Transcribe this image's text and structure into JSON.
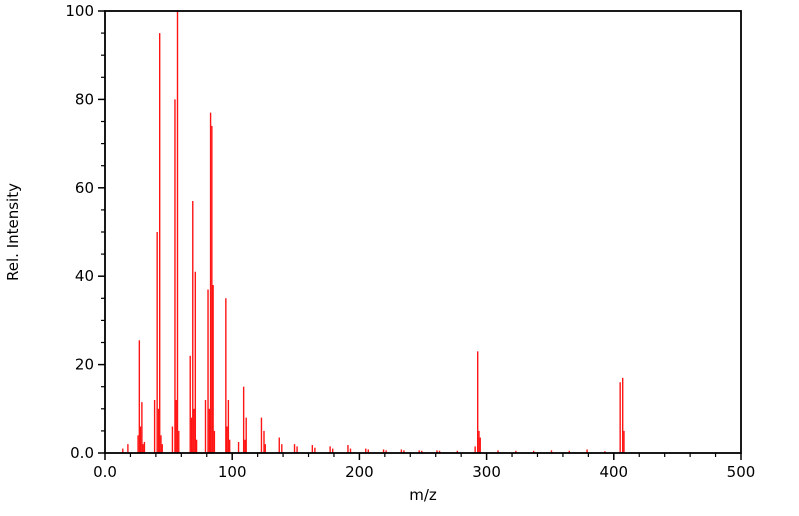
{
  "figure": {
    "background": "#ffffff",
    "frame_color": "#000000"
  },
  "chart_data": {
    "type": "bar",
    "subtype": "mass-spectrum-stem-plot",
    "title": "",
    "xlabel": "m/z",
    "ylabel": "Rel. Intensity",
    "xlim": [
      0,
      500
    ],
    "ylim": [
      0,
      100
    ],
    "x_major_ticks": [
      0,
      100,
      200,
      300,
      400,
      500
    ],
    "x_tick_labels": [
      "0.0",
      "100",
      "200",
      "300",
      "400",
      "500"
    ],
    "y_major_ticks": [
      0,
      20,
      40,
      60,
      80,
      100
    ],
    "y_tick_labels": [
      "0.0",
      "20",
      "40",
      "60",
      "80",
      "100"
    ],
    "x_minor_step": 20,
    "y_minor_step": 5,
    "grid": false,
    "legend": null,
    "bar_color": "#ff1414",
    "peaks": [
      {
        "mz": 14,
        "intensity": 1.0
      },
      {
        "mz": 18,
        "intensity": 2.0
      },
      {
        "mz": 26,
        "intensity": 4.0
      },
      {
        "mz": 27,
        "intensity": 25.5
      },
      {
        "mz": 28,
        "intensity": 6.0
      },
      {
        "mz": 29,
        "intensity": 11.5
      },
      {
        "mz": 30,
        "intensity": 2.0
      },
      {
        "mz": 31,
        "intensity": 2.5
      },
      {
        "mz": 39,
        "intensity": 12.0
      },
      {
        "mz": 41,
        "intensity": 50.0
      },
      {
        "mz": 42,
        "intensity": 10.0
      },
      {
        "mz": 43,
        "intensity": 95.0
      },
      {
        "mz": 44,
        "intensity": 4.0
      },
      {
        "mz": 45,
        "intensity": 2.0
      },
      {
        "mz": 53,
        "intensity": 6.0
      },
      {
        "mz": 55,
        "intensity": 80.0
      },
      {
        "mz": 56,
        "intensity": 12.0
      },
      {
        "mz": 57,
        "intensity": 100.0
      },
      {
        "mz": 58,
        "intensity": 5.0
      },
      {
        "mz": 67,
        "intensity": 22.0
      },
      {
        "mz": 68,
        "intensity": 8.0
      },
      {
        "mz": 69,
        "intensity": 57.0
      },
      {
        "mz": 70,
        "intensity": 10.0
      },
      {
        "mz": 71,
        "intensity": 41.0
      },
      {
        "mz": 72,
        "intensity": 3.0
      },
      {
        "mz": 79,
        "intensity": 12.0
      },
      {
        "mz": 81,
        "intensity": 37.0
      },
      {
        "mz": 82,
        "intensity": 10.0
      },
      {
        "mz": 83,
        "intensity": 77.0
      },
      {
        "mz": 84,
        "intensity": 74.0
      },
      {
        "mz": 85,
        "intensity": 38.0
      },
      {
        "mz": 86,
        "intensity": 5.0
      },
      {
        "mz": 95,
        "intensity": 35.0
      },
      {
        "mz": 96,
        "intensity": 6.0
      },
      {
        "mz": 97,
        "intensity": 12.0
      },
      {
        "mz": 98,
        "intensity": 3.0
      },
      {
        "mz": 105,
        "intensity": 2.5
      },
      {
        "mz": 109,
        "intensity": 15.0
      },
      {
        "mz": 110,
        "intensity": 3.0
      },
      {
        "mz": 111,
        "intensity": 8.0
      },
      {
        "mz": 123,
        "intensity": 8.0
      },
      {
        "mz": 125,
        "intensity": 5.0
      },
      {
        "mz": 126,
        "intensity": 2.0
      },
      {
        "mz": 137,
        "intensity": 3.5
      },
      {
        "mz": 139,
        "intensity": 2.0
      },
      {
        "mz": 149,
        "intensity": 2.0
      },
      {
        "mz": 151,
        "intensity": 1.5
      },
      {
        "mz": 163,
        "intensity": 1.8
      },
      {
        "mz": 165,
        "intensity": 1.2
      },
      {
        "mz": 177,
        "intensity": 1.5
      },
      {
        "mz": 179,
        "intensity": 1.0
      },
      {
        "mz": 191,
        "intensity": 1.8
      },
      {
        "mz": 193,
        "intensity": 1.0
      },
      {
        "mz": 205,
        "intensity": 1.0
      },
      {
        "mz": 207,
        "intensity": 0.8
      },
      {
        "mz": 219,
        "intensity": 0.8
      },
      {
        "mz": 221,
        "intensity": 0.6
      },
      {
        "mz": 233,
        "intensity": 0.8
      },
      {
        "mz": 235,
        "intensity": 0.6
      },
      {
        "mz": 247,
        "intensity": 0.6
      },
      {
        "mz": 249,
        "intensity": 0.5
      },
      {
        "mz": 261,
        "intensity": 0.6
      },
      {
        "mz": 263,
        "intensity": 0.5
      },
      {
        "mz": 277,
        "intensity": 0.5
      },
      {
        "mz": 291,
        "intensity": 1.5
      },
      {
        "mz": 293,
        "intensity": 23.0
      },
      {
        "mz": 294,
        "intensity": 5.0
      },
      {
        "mz": 295,
        "intensity": 3.5
      },
      {
        "mz": 309,
        "intensity": 0.6
      },
      {
        "mz": 323,
        "intensity": 0.5
      },
      {
        "mz": 337,
        "intensity": 0.5
      },
      {
        "mz": 351,
        "intensity": 0.6
      },
      {
        "mz": 365,
        "intensity": 0.5
      },
      {
        "mz": 379,
        "intensity": 0.8
      },
      {
        "mz": 393,
        "intensity": 0.4
      },
      {
        "mz": 405,
        "intensity": 16.0
      },
      {
        "mz": 407,
        "intensity": 17.0
      },
      {
        "mz": 408,
        "intensity": 5.0
      }
    ]
  }
}
